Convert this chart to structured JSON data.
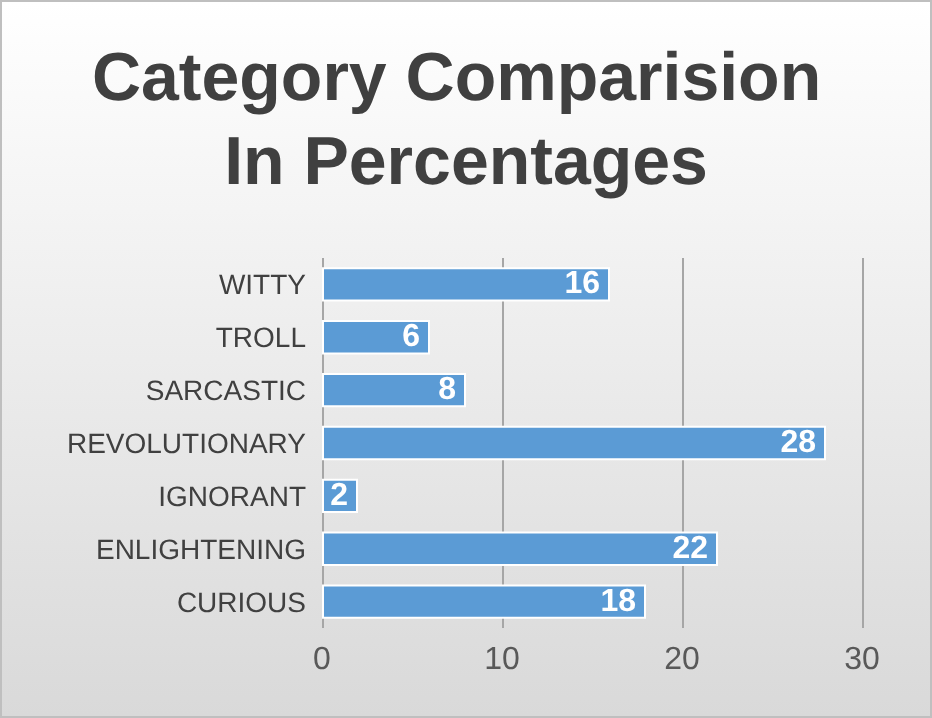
{
  "chart_data": {
    "type": "bar",
    "orientation": "horizontal",
    "title": "Category Comparision In Percentages",
    "categories": [
      "WITTY",
      "TROLL",
      "SARCASTIC",
      "REVOLUTIONARY",
      "IGNORANT",
      "ENLIGHTENING",
      "CURIOUS"
    ],
    "values": [
      16,
      6,
      8,
      28,
      2,
      22,
      18
    ],
    "color": "#5b9bd5",
    "xlim": [
      0,
      30
    ],
    "xticks": [
      0,
      10,
      20,
      30
    ],
    "grid": "x",
    "data_labels": true
  }
}
